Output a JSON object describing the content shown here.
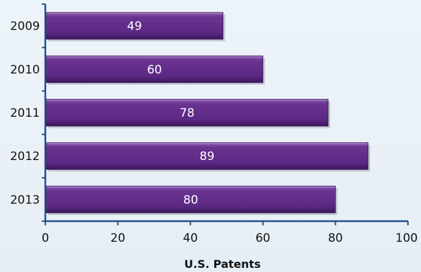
{
  "chart_data": {
    "type": "bar",
    "orientation": "horizontal",
    "categories": [
      "2009",
      "2010",
      "2011",
      "2012",
      "2013"
    ],
    "values": [
      49,
      60,
      78,
      89,
      80
    ],
    "data_labels": [
      "49",
      "60",
      "78",
      "89",
      "80"
    ],
    "title": "",
    "xlabel": "U.S. Patents",
    "ylabel": "",
    "xlim": [
      0,
      100
    ],
    "x_ticks": [
      0,
      20,
      40,
      60,
      80,
      100
    ],
    "x_tick_labels": [
      "0",
      "20",
      "40",
      "60",
      "80",
      "100"
    ],
    "grid": false,
    "legend": "none",
    "colors": {
      "bar": "#5e2a84",
      "axis": "#1f4e8c",
      "background": "#e9f1f7"
    }
  }
}
